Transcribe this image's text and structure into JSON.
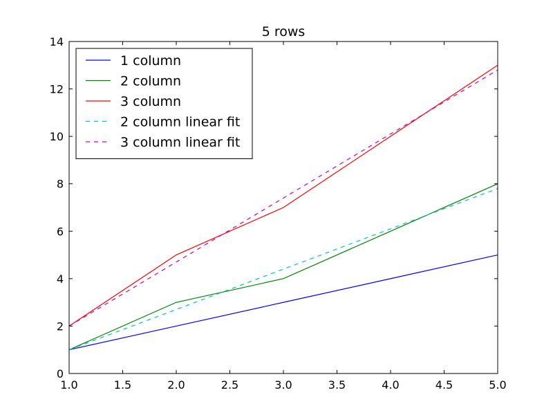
{
  "chart_data": {
    "type": "line",
    "title": "5 rows",
    "xlabel": "",
    "ylabel": "",
    "xlim": [
      1.0,
      5.0
    ],
    "ylim": [
      0,
      14
    ],
    "x_ticks": [
      "1.0",
      "1.5",
      "2.0",
      "2.5",
      "3.0",
      "3.5",
      "4.0",
      "4.5",
      "5.0"
    ],
    "y_ticks": [
      "0",
      "2",
      "4",
      "6",
      "8",
      "10",
      "12",
      "14"
    ],
    "grid": false,
    "legend_position": "top-left",
    "series": [
      {
        "name": "1 column",
        "x": [
          1,
          2,
          3,
          4,
          5
        ],
        "y": [
          1,
          2,
          3,
          4,
          5
        ],
        "color": "#0000ff",
        "style": "solid"
      },
      {
        "name": "2 column",
        "x": [
          1,
          2,
          3,
          4,
          5
        ],
        "y": [
          1,
          3,
          4,
          6,
          8
        ],
        "color": "#008000",
        "style": "solid"
      },
      {
        "name": "3 column",
        "x": [
          1,
          2,
          3,
          4,
          5
        ],
        "y": [
          2,
          5,
          7,
          10,
          13
        ],
        "color": "#ff0000",
        "style": "solid"
      },
      {
        "name": "2 column linear fit",
        "x": [
          1,
          5
        ],
        "y": [
          1.0,
          7.8
        ],
        "color": "#00bfbf",
        "style": "dashed"
      },
      {
        "name": "3 column linear fit",
        "x": [
          1,
          5
        ],
        "y": [
          2.0,
          12.8
        ],
        "color": "#bf00bf",
        "style": "dashed"
      }
    ]
  }
}
